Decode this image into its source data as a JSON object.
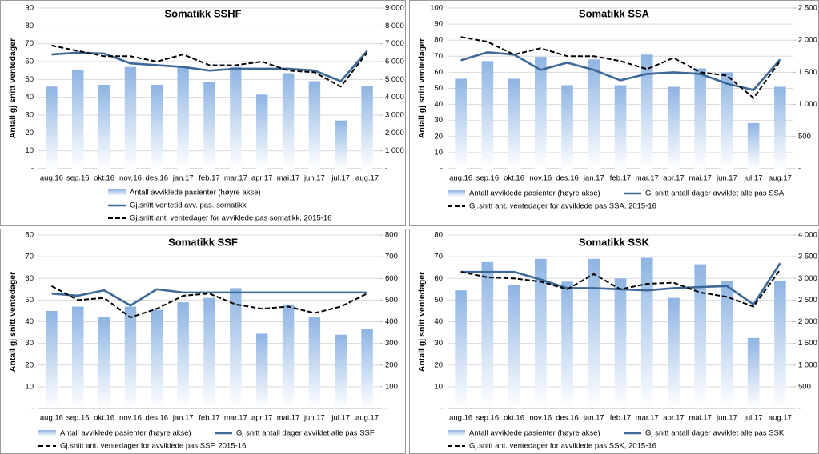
{
  "chart_data": [
    {
      "type": "combo",
      "title": "Somatikk SSHF",
      "y_label": "Antall gj snitt ventedager",
      "categories": [
        "aug.16",
        "sep.16",
        "okt.16",
        "nov.16",
        "des.16",
        "jan.17",
        "feb.17",
        "mar.17",
        "apr.17",
        "mai.17",
        "jun.17",
        "jul.17",
        "aug.17"
      ],
      "ylim": [
        0,
        90
      ],
      "yticks": [
        {
          "value": 0,
          "label": "-"
        },
        10,
        20,
        30,
        40,
        50,
        60,
        70,
        80,
        90
      ],
      "y2lim": [
        0,
        9000
      ],
      "y2ticks": [
        {
          "value": 0,
          "label": "-"
        },
        {
          "value": 1000,
          "label": "1 000"
        },
        {
          "value": 2000,
          "label": "2 000"
        },
        {
          "value": 3000,
          "label": "3 000"
        },
        {
          "value": 4000,
          "label": "4 000"
        },
        {
          "value": 5000,
          "label": "5 000"
        },
        {
          "value": 6000,
          "label": "6 000"
        },
        {
          "value": 7000,
          "label": "7 000"
        },
        {
          "value": 8000,
          "label": "8 000"
        },
        {
          "value": 9000,
          "label": "9 000"
        }
      ],
      "grid": true,
      "series": [
        {
          "name": "Antall avviklede pasienter (høyre akse)",
          "type": "bar",
          "axis": "y2",
          "color": "#8eb4e3",
          "values": [
            4600,
            5550,
            4700,
            5700,
            4700,
            5700,
            4850,
            5700,
            4150,
            5350,
            4900,
            2700,
            4650
          ]
        },
        {
          "name": "Gj.snitt ventetid avv. pas. somatikk",
          "type": "line",
          "color": "#3b6896",
          "dashed": false,
          "values": [
            64,
            65,
            64.5,
            59,
            58,
            57,
            55,
            56,
            56,
            56,
            55,
            49,
            66
          ]
        },
        {
          "name": "Gj.snitt ant. ventedager for avviklede pas somatikk, 2015-16",
          "type": "line",
          "color": "#000000",
          "dashed": true,
          "values": [
            69,
            66,
            63,
            63,
            60,
            64,
            58,
            58,
            60,
            55,
            54,
            46,
            65
          ]
        }
      ]
    },
    {
      "type": "combo",
      "title": "Somatikk SSA",
      "y_label": "Antall gj snitt ventedager",
      "categories": [
        "aug.16",
        "sep.16",
        "okt.16",
        "nov.16",
        "des.16",
        "jan.17",
        "feb.17",
        "mar.17",
        "apr.17",
        "mai.17",
        "jun.17",
        "jul.17",
        "aug.17"
      ],
      "ylim": [
        0,
        100
      ],
      "yticks": [
        {
          "value": 0,
          "label": "-"
        },
        10,
        20,
        30,
        40,
        50,
        60,
        70,
        80,
        90,
        100
      ],
      "y2lim": [
        0,
        2500
      ],
      "y2ticks": [
        {
          "value": 0,
          "label": "-"
        },
        500,
        {
          "value": 1000,
          "label": "1 000"
        },
        {
          "value": 1500,
          "label": "1 500"
        },
        {
          "value": 2000,
          "label": "2 000"
        },
        {
          "value": 2500,
          "label": "2 500"
        }
      ],
      "grid": true,
      "series": [
        {
          "name": "Antall avviklede pasienter (høyre akse)",
          "type": "bar",
          "axis": "y2",
          "color": "#8eb4e3",
          "values": [
            1400,
            1675,
            1400,
            1740,
            1300,
            1700,
            1300,
            1775,
            1275,
            1560,
            1500,
            710,
            1275
          ]
        },
        {
          "name": "Gj snitt antall dager avviklet alle pas SSA",
          "type": "line",
          "color": "#3b6896",
          "dashed": false,
          "values": [
            67.5,
            72.5,
            71,
            61.5,
            66,
            61.5,
            55,
            59,
            60,
            59,
            53,
            49,
            68
          ]
        },
        {
          "name": "Gj.snitt ant. ventedager for avviklede pas SSA, 2015-16",
          "type": "line",
          "color": "#000000",
          "dashed": true,
          "values": [
            82,
            79,
            71,
            75,
            70,
            70,
            67,
            62,
            69,
            60,
            58,
            44,
            67
          ]
        }
      ]
    },
    {
      "type": "combo",
      "title": "Somatikk SSF",
      "y_label": "Antall gj snitt ventedager",
      "categories": [
        "aug.16",
        "sep.16",
        "okt.16",
        "nov.16",
        "des.16",
        "jan.17",
        "feb.17",
        "mar.17",
        "apr.17",
        "mai.17",
        "jun.17",
        "jul.17",
        "aug.17"
      ],
      "ylim": [
        0,
        80
      ],
      "yticks": [
        {
          "value": 0,
          "label": "-"
        },
        10,
        20,
        30,
        40,
        50,
        60,
        70,
        80
      ],
      "y2lim": [
        0,
        800
      ],
      "y2ticks": [
        {
          "value": 0,
          "label": "-"
        },
        100,
        200,
        300,
        400,
        500,
        600,
        700,
        800
      ],
      "grid": true,
      "series": [
        {
          "name": "Antall avviklede pasienter (høyre akse)",
          "type": "bar",
          "axis": "y2",
          "color": "#8eb4e3",
          "values": [
            450,
            470,
            420,
            470,
            455,
            490,
            510,
            555,
            345,
            480,
            420,
            340,
            365
          ]
        },
        {
          "name": "Gj snitt antall dager avviklet alle pas SSF",
          "type": "line",
          "color": "#3b6896",
          "dashed": false,
          "values": [
            53,
            52,
            54.5,
            47.5,
            55,
            53.5,
            53.5,
            53.5,
            53.5,
            53.5,
            53.5,
            53.5,
            53.5
          ]
        },
        {
          "name": "Gj.snitt ant. ventedager for avviklede pas SSF, 2015-16",
          "type": "line",
          "color": "#000000",
          "dashed": true,
          "values": [
            56.5,
            50,
            51,
            42,
            46,
            52,
            53,
            48,
            46,
            47,
            44,
            47,
            53
          ]
        }
      ]
    },
    {
      "type": "combo",
      "title": "Somatikk SSK",
      "y_label": "Antall gj snitt ventedager",
      "categories": [
        "aug.16",
        "sep.16",
        "okt.16",
        "nov.16",
        "des.16",
        "jan.17",
        "feb.17",
        "mar.17",
        "apr.17",
        "mai.17",
        "jun.17",
        "jul.17",
        "aug.17"
      ],
      "ylim": [
        0,
        80
      ],
      "yticks": [
        {
          "value": 0,
          "label": "-"
        },
        10,
        20,
        30,
        40,
        50,
        60,
        70,
        80
      ],
      "y2lim": [
        0,
        4000
      ],
      "y2ticks": [
        {
          "value": 0,
          "label": "-"
        },
        500,
        {
          "value": 1000,
          "label": "1 000"
        },
        {
          "value": 1500,
          "label": "1 500"
        },
        {
          "value": 2000,
          "label": "2 000"
        },
        {
          "value": 2500,
          "label": "2 500"
        },
        {
          "value": 3000,
          "label": "3 000"
        },
        {
          "value": 3500,
          "label": "3 500"
        },
        {
          "value": 4000,
          "label": "4 000"
        }
      ],
      "grid": true,
      "series": [
        {
          "name": "Antall avviklede pasienter (høyre akse)",
          "type": "bar",
          "axis": "y2",
          "color": "#8eb4e3",
          "values": [
            2725,
            3375,
            2850,
            3450,
            2925,
            3450,
            3000,
            3475,
            2550,
            3325,
            2950,
            1625,
            2950
          ]
        },
        {
          "name": "Gj snitt antall dager avviklet alle pas SSK",
          "type": "line",
          "color": "#3b6896",
          "dashed": false,
          "values": [
            63,
            63,
            63,
            59.5,
            55.5,
            55.5,
            55,
            54.5,
            55.5,
            56,
            56.5,
            48,
            67
          ]
        },
        {
          "name": "Gj.snitt ant. ventedager for avviklede pas SSK, 2015-16",
          "type": "line",
          "color": "#000000",
          "dashed": true,
          "values": [
            63,
            60.5,
            60,
            58.5,
            55,
            62,
            55,
            57.5,
            58,
            53.5,
            51.5,
            47,
            64
          ]
        }
      ]
    }
  ]
}
